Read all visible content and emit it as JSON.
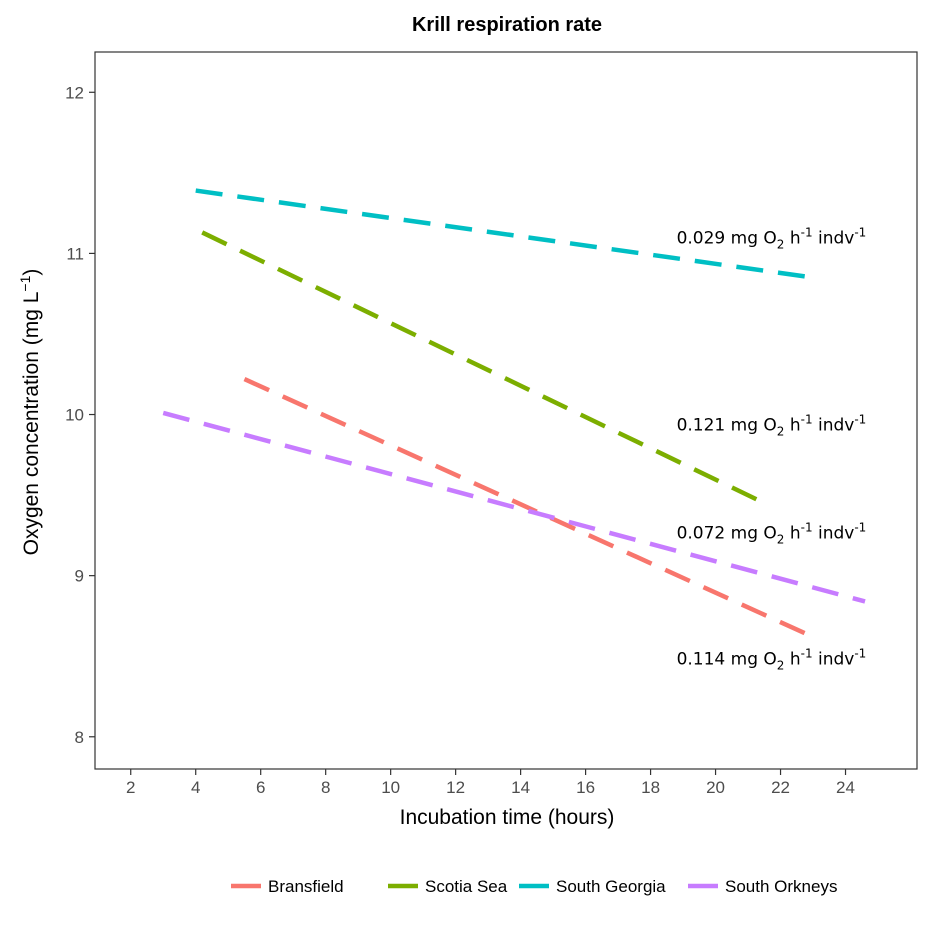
{
  "chart_data": {
    "type": "line",
    "title": "Krill respiration rate",
    "xlabel": "Incubation time (hours)",
    "ylabel": "Oxygen concentration (mg L",
    "ylabel_sup": "−1",
    "ylabel_close": ")",
    "xlim": [
      0.9,
      26.2
    ],
    "ylim": [
      7.8,
      12.25
    ],
    "xticks": [
      2,
      4,
      6,
      8,
      10,
      12,
      14,
      16,
      18,
      20,
      22,
      24
    ],
    "yticks": [
      8,
      9,
      10,
      11,
      12
    ],
    "grid": false,
    "legend_position": "bottom",
    "line_style": "dashed",
    "series": [
      {
        "name": "Bransfield",
        "color": "#F8766D",
        "x": [
          5.5,
          23.0
        ],
        "y": [
          10.22,
          8.62
        ]
      },
      {
        "name": "Scotia Sea",
        "color": "#7CAE00",
        "x": [
          4.2,
          21.3
        ],
        "y": [
          11.13,
          9.47
        ]
      },
      {
        "name": "South Georgia",
        "color": "#00BFC4",
        "x": [
          4.0,
          23.0
        ],
        "y": [
          11.39,
          10.85
        ]
      },
      {
        "name": "South Orkneys",
        "color": "#C77CFF",
        "x": [
          3.0,
          24.6
        ],
        "y": [
          10.01,
          8.84
        ]
      }
    ],
    "annotations": [
      {
        "value": "0.029",
        "text": "mg O",
        "sub": "2",
        "mid": " h",
        "sup1": "-1",
        "end": " indv",
        "sup2": "-1",
        "x": 18.8,
        "y": 11.06
      },
      {
        "value": "0.121",
        "text": "mg O",
        "sub": "2",
        "mid": " h",
        "sup1": "-1",
        "end": " indv",
        "sup2": "-1",
        "x": 18.8,
        "y": 9.9
      },
      {
        "value": "0.072",
        "text": "mg O",
        "sub": "2",
        "mid": " h",
        "sup1": "-1",
        "end": " indv",
        "sup2": "-1",
        "x": 18.8,
        "y": 9.23
      },
      {
        "value": "0.114",
        "text": "mg O",
        "sub": "2",
        "mid": " h",
        "sup1": "-1",
        "end": " indv",
        "sup2": "-1",
        "x": 18.8,
        "y": 8.45
      }
    ]
  }
}
